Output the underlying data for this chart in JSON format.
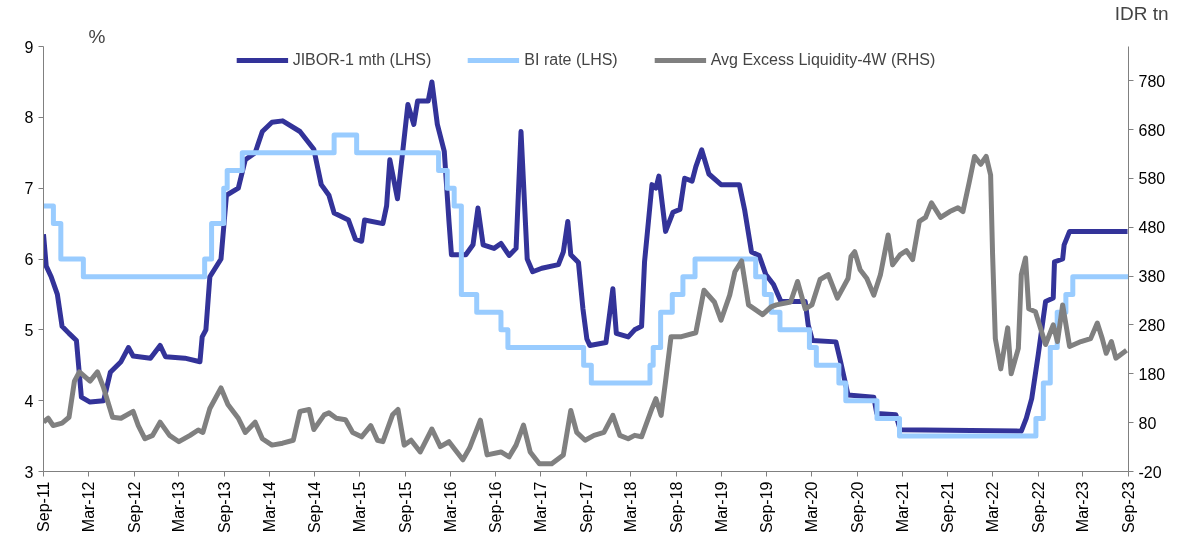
{
  "chart_data": {
    "type": "line",
    "ylabel": "%",
    "y2label": "IDR tn",
    "xlim": [
      "2011-09-01",
      "2023-09-01"
    ],
    "ylim": [
      3,
      9
    ],
    "yticks": [
      3,
      4,
      5,
      6,
      7,
      8,
      9
    ],
    "y2lim": [
      -20,
      850
    ],
    "y2ticks": [
      -20,
      80,
      180,
      280,
      380,
      480,
      580,
      680,
      780
    ],
    "xticks": [
      {
        "value": "2011-09-01",
        "label": "Sep-11"
      },
      {
        "value": "2012-03-01",
        "label": "Mar-12"
      },
      {
        "value": "2012-09-01",
        "label": "Sep-12"
      },
      {
        "value": "2013-03-01",
        "label": "Mar-13"
      },
      {
        "value": "2013-09-01",
        "label": "Sep-13"
      },
      {
        "value": "2014-03-01",
        "label": "Mar-14"
      },
      {
        "value": "2014-09-01",
        "label": "Sep-14"
      },
      {
        "value": "2015-03-01",
        "label": "Mar-15"
      },
      {
        "value": "2015-09-01",
        "label": "Sep-15"
      },
      {
        "value": "2016-03-01",
        "label": "Mar-16"
      },
      {
        "value": "2016-09-01",
        "label": "Sep-16"
      },
      {
        "value": "2017-03-01",
        "label": "Mar-17"
      },
      {
        "value": "2017-09-01",
        "label": "Sep-17"
      },
      {
        "value": "2018-03-01",
        "label": "Mar-18"
      },
      {
        "value": "2018-09-01",
        "label": "Sep-18"
      },
      {
        "value": "2019-03-01",
        "label": "Mar-19"
      },
      {
        "value": "2019-09-01",
        "label": "Sep-19"
      },
      {
        "value": "2020-03-01",
        "label": "Mar-20"
      },
      {
        "value": "2020-09-01",
        "label": "Sep-20"
      },
      {
        "value": "2021-03-01",
        "label": "Mar-21"
      },
      {
        "value": "2021-09-01",
        "label": "Sep-21"
      },
      {
        "value": "2022-03-01",
        "label": "Mar-22"
      },
      {
        "value": "2022-09-01",
        "label": "Sep-22"
      },
      {
        "value": "2023-03-01",
        "label": "Mar-23"
      },
      {
        "value": "2023-09-01",
        "label": "Sep-23"
      }
    ],
    "grid": false,
    "legend": "top",
    "marker": "none",
    "line_style": "solid",
    "series": [
      {
        "name": "JIBOR-1 mth (LHS)",
        "color": "#333399",
        "type": "line",
        "x": [
          "2011-09-01",
          "2011-09-12",
          "2011-10-02",
          "2011-10-27",
          "2011-11-15",
          "2011-12-13",
          "2012-01-12",
          "2012-02-01",
          "2012-03-07",
          "2012-05-01",
          "2012-05-28",
          "2012-07-10",
          "2012-08-09",
          "2012-08-28",
          "2012-11-06",
          "2012-12-15",
          "2013-01-06",
          "2013-03-25",
          "2013-05-25",
          "2013-06-03",
          "2013-06-18",
          "2013-07-04",
          "2013-08-18",
          "2013-09-09",
          "2013-10-27",
          "2013-11-24",
          "2014-01-03",
          "2014-02-01",
          "2014-03-12",
          "2014-04-24",
          "2014-07-03",
          "2014-08-28",
          "2014-09-27",
          "2014-10-28",
          "2014-11-18",
          "2015-01-15",
          "2015-02-12",
          "2015-03-09",
          "2015-03-21",
          "2015-06-03",
          "2015-06-18",
          "2015-07-01",
          "2015-08-01",
          "2015-09-12",
          "2015-10-06",
          "2015-10-21",
          "2015-12-03",
          "2015-12-18",
          "2016-01-09",
          "2016-02-06",
          "2016-02-25",
          "2016-03-06",
          "2016-05-03",
          "2016-06-01",
          "2016-06-21",
          "2016-07-12",
          "2016-08-25",
          "2016-09-22",
          "2016-10-25",
          "2016-11-22",
          "2016-12-12",
          "2017-01-06",
          "2017-01-28",
          "2017-03-06",
          "2017-05-12",
          "2017-06-01",
          "2017-06-19",
          "2017-07-01",
          "2017-08-01",
          "2017-08-19",
          "2017-09-04",
          "2017-09-16",
          "2017-11-20",
          "2017-12-18",
          "2018-01-01",
          "2018-02-18",
          "2018-03-16",
          "2018-04-13",
          "2018-04-25",
          "2018-05-25",
          "2018-06-10",
          "2018-06-22",
          "2018-07-19",
          "2018-08-18",
          "2018-09-15",
          "2018-10-04",
          "2018-11-03",
          "2018-11-18",
          "2018-12-12",
          "2019-01-10",
          "2019-02-28",
          "2019-05-13",
          "2019-06-03",
          "2019-07-01",
          "2019-08-01",
          "2019-08-28",
          "2019-09-28",
          "2019-10-28",
          "2020-02-03",
          "2020-02-15",
          "2020-03-03",
          "2020-06-06",
          "2020-06-25",
          "2020-07-25",
          "2020-11-06",
          "2020-11-18",
          "2021-02-03",
          "2021-02-21",
          "2022-06-25",
          "2022-07-15",
          "2022-08-06",
          "2022-09-01",
          "2022-10-01",
          "2022-11-01",
          "2022-11-06",
          "2022-12-09",
          "2022-12-15",
          "2023-01-06",
          "2023-08-28"
        ],
        "values": [
          6.35,
          5.9,
          5.75,
          5.5,
          5.05,
          4.95,
          4.85,
          4.05,
          3.98,
          4.0,
          4.4,
          4.55,
          4.75,
          4.63,
          4.6,
          4.78,
          4.62,
          4.6,
          4.55,
          4.9,
          5.0,
          5.75,
          6.0,
          6.9,
          7.0,
          7.4,
          7.5,
          7.8,
          7.93,
          7.95,
          7.8,
          7.55,
          7.05,
          6.9,
          6.65,
          6.55,
          6.28,
          6.25,
          6.55,
          6.5,
          6.75,
          7.4,
          6.85,
          8.18,
          7.9,
          8.23,
          8.23,
          8.5,
          7.9,
          7.52,
          6.53,
          6.06,
          6.06,
          6.2,
          6.72,
          6.2,
          6.15,
          6.22,
          6.05,
          6.15,
          7.8,
          6.0,
          5.82,
          5.87,
          5.92,
          6.1,
          6.53,
          6.06,
          5.95,
          5.3,
          4.87,
          4.78,
          4.82,
          5.58,
          4.95,
          4.9,
          5.0,
          5.05,
          5.96,
          7.05,
          7.0,
          7.17,
          6.39,
          6.66,
          6.7,
          7.14,
          7.1,
          7.3,
          7.54,
          7.2,
          7.05,
          7.05,
          6.7,
          6.1,
          6.05,
          5.78,
          5.64,
          5.4,
          5.4,
          5.07,
          4.85,
          4.83,
          4.55,
          4.08,
          4.05,
          3.82,
          3.8,
          3.59,
          3.57,
          3.75,
          4.03,
          4.64,
          5.4,
          5.45,
          5.96,
          6.0,
          6.2,
          6.39,
          6.39
        ]
      },
      {
        "name": "BI rate (LHS)",
        "color": "#99ccff",
        "type": "step",
        "x": [
          "2011-09-01",
          "2011-10-11",
          "2011-11-10",
          "2012-02-09",
          "2013-06-13",
          "2013-07-11",
          "2013-08-29",
          "2013-09-12",
          "2013-11-12",
          "2014-11-18",
          "2015-02-17",
          "2016-01-14",
          "2016-02-18",
          "2016-03-17",
          "2016-04-15",
          "2016-06-16",
          "2016-09-22",
          "2016-10-20",
          "2017-08-22",
          "2017-09-22",
          "2018-05-17",
          "2018-05-30",
          "2018-06-29",
          "2018-08-15",
          "2018-09-27",
          "2018-11-15",
          "2019-07-18",
          "2019-08-22",
          "2019-09-19",
          "2019-10-24",
          "2020-02-20",
          "2020-03-19",
          "2020-06-18",
          "2020-07-16",
          "2020-11-19",
          "2021-02-18",
          "2022-08-23",
          "2022-09-22",
          "2022-10-20",
          "2022-11-17",
          "2022-12-22",
          "2023-01-19",
          "2023-08-31"
        ],
        "values": [
          6.75,
          6.5,
          6.0,
          5.75,
          6.0,
          6.5,
          7.0,
          7.25,
          7.5,
          7.75,
          7.5,
          7.25,
          7.0,
          6.75,
          5.5,
          5.25,
          5.0,
          4.75,
          4.5,
          4.25,
          4.5,
          4.75,
          5.25,
          5.5,
          5.75,
          6.0,
          5.75,
          5.5,
          5.25,
          5.0,
          4.75,
          4.5,
          4.25,
          4.0,
          3.75,
          3.5,
          3.75,
          4.25,
          4.75,
          5.25,
          5.5,
          5.75,
          5.75
        ]
      },
      {
        "name": "Avg Excess Liquidity-4W (RHS)",
        "color": "#808080",
        "type": "line",
        "axis": "y2",
        "x": [
          "2011-09-01",
          "2011-09-20",
          "2011-10-10",
          "2011-11-15",
          "2011-12-13",
          "2012-01-04",
          "2012-01-24",
          "2012-03-07",
          "2012-04-06",
          "2012-05-01",
          "2012-06-06",
          "2012-07-10",
          "2012-08-28",
          "2012-09-18",
          "2012-10-15",
          "2012-11-15",
          "2012-12-15",
          "2013-01-22",
          "2013-03-01",
          "2013-04-15",
          "2013-05-18",
          "2013-06-06",
          "2013-07-04",
          "2013-08-18",
          "2013-09-15",
          "2013-10-27",
          "2013-11-24",
          "2014-01-03",
          "2014-02-01",
          "2014-03-12",
          "2014-04-24",
          "2014-06-06",
          "2014-07-03",
          "2014-08-09",
          "2014-08-28",
          "2014-10-09",
          "2014-10-28",
          "2014-11-27",
          "2015-01-03",
          "2015-02-01",
          "2015-03-09",
          "2015-04-15",
          "2015-05-12",
          "2015-06-03",
          "2015-07-12",
          "2015-08-03",
          "2015-08-28",
          "2015-09-25",
          "2015-11-01",
          "2015-12-18",
          "2016-01-21",
          "2016-02-25",
          "2016-04-21",
          "2016-05-18",
          "2016-07-01",
          "2016-07-28",
          "2016-09-22",
          "2016-10-25",
          "2016-11-22",
          "2016-12-22",
          "2017-01-18",
          "2017-02-24",
          "2017-04-15",
          "2017-06-01",
          "2017-07-01",
          "2017-07-25",
          "2017-08-28",
          "2017-10-03",
          "2017-11-12",
          "2017-12-18",
          "2018-01-15",
          "2018-02-18",
          "2018-03-16",
          "2018-04-13",
          "2018-05-25",
          "2018-06-10",
          "2018-07-01",
          "2018-07-19",
          "2018-08-10",
          "2018-09-21",
          "2018-11-18",
          "2018-12-21",
          "2019-02-01",
          "2019-02-28",
          "2019-04-04",
          "2019-04-25",
          "2019-05-22",
          "2019-06-19",
          "2019-08-15",
          "2019-09-18",
          "2019-10-09",
          "2019-12-06",
          "2020-01-03",
          "2020-02-03",
          "2020-03-01",
          "2020-04-03",
          "2020-05-06",
          "2020-06-12",
          "2020-07-25",
          "2020-08-06",
          "2020-08-21",
          "2020-09-12",
          "2020-10-09",
          "2020-11-06",
          "2020-12-03",
          "2021-01-03",
          "2021-01-21",
          "2021-02-21",
          "2021-03-18",
          "2021-04-12",
          "2021-05-09",
          "2021-06-03",
          "2021-06-27",
          "2021-08-03",
          "2021-09-09",
          "2021-10-12",
          "2021-11-01",
          "2021-11-27",
          "2021-12-18",
          "2022-01-12",
          "2022-02-03",
          "2022-02-21",
          "2022-03-01",
          "2022-03-12",
          "2022-04-03",
          "2022-05-01",
          "2022-05-15",
          "2022-06-13",
          "2022-06-25",
          "2022-07-12",
          "2022-07-25",
          "2022-08-21",
          "2022-10-01",
          "2022-11-01",
          "2022-11-18",
          "2022-12-09",
          "2023-01-06",
          "2023-02-21",
          "2023-04-01",
          "2023-04-28",
          "2023-05-18",
          "2023-06-03",
          "2023-06-24",
          "2023-07-12",
          "2023-08-24"
        ],
        "values": [
          81,
          89,
          74,
          79,
          91,
          165,
          184,
          165,
          184,
          151,
          91,
          89,
          103,
          74,
          47,
          54,
          81,
          54,
          41,
          54,
          65,
          60,
          109,
          151,
          117,
          89,
          60,
          81,
          47,
          34,
          38,
          44,
          103,
          107,
          66,
          96,
          100,
          89,
          86,
          60,
          51,
          74,
          44,
          41,
          96,
          107,
          34,
          44,
          20,
          67,
          31,
          41,
          4,
          28,
          85,
          14,
          20,
          10,
          34,
          75,
          20,
          -4,
          -4,
          14,
          105,
          60,
          44,
          54,
          60,
          95,
          54,
          47,
          54,
          51,
          109,
          129,
          95,
          165,
          256,
          256,
          264,
          351,
          327,
          290,
          341,
          389,
          411,
          321,
          301,
          317,
          321,
          327,
          369,
          313,
          321,
          373,
          383,
          335,
          375,
          420,
          430,
          393,
          375,
          341,
          383,
          464,
          403,
          424,
          432,
          414,
          492,
          500,
          530,
          500,
          512,
          520,
          512,
          573,
          625,
          609,
          625,
          587,
          424,
          252,
          190,
          274,
          180,
          232,
          383,
          417,
          313,
          307,
          240,
          280,
          246,
          321,
          236,
          246,
          252,
          284,
          252,
          222,
          246,
          212,
          228
        ]
      }
    ]
  }
}
